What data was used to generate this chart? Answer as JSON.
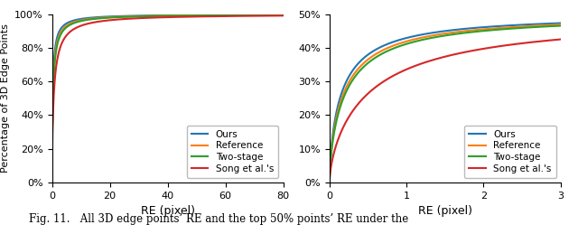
{
  "left_plot": {
    "xlabel": "RE (pixel)",
    "ylabel": "Percentage of 3D Edge Points",
    "xlim": [
      0,
      80
    ],
    "ylim": [
      0,
      1.0
    ],
    "yticks": [
      0.0,
      0.2,
      0.4,
      0.6,
      0.8,
      1.0
    ],
    "ytick_labels": [
      "0%",
      "20%",
      "40%",
      "60%",
      "80%",
      "100%"
    ],
    "xticks": [
      0,
      20,
      40,
      60,
      80
    ]
  },
  "right_plot": {
    "xlabel": "RE (pixel)",
    "xlim": [
      0,
      3
    ],
    "ylim": [
      0,
      0.5
    ],
    "yticks": [
      0.0,
      0.1,
      0.2,
      0.3,
      0.4,
      0.5
    ],
    "ytick_labels": [
      "0%",
      "10%",
      "20%",
      "30%",
      "40%",
      "50%"
    ],
    "xticks": [
      0,
      1,
      2,
      3
    ]
  },
  "legend_labels": [
    "Ours",
    "Reference",
    "Two-stage",
    "Song et al.'s"
  ],
  "legend_colors": [
    "#1f77b4",
    "#ff7f0e",
    "#2ca02c",
    "#d62728"
  ],
  "left_curve_params": {
    "Ours": {
      "c": 0.55,
      "alpha": 0.55
    },
    "Reference": {
      "c": 0.7,
      "alpha": 0.55
    },
    "Two-stage": {
      "c": 0.8,
      "alpha": 0.55
    },
    "Song et al.'s": {
      "c": 1.4,
      "alpha": 0.55
    }
  },
  "right_curve_params": {
    "Ours": {
      "c": 0.28,
      "alpha": 0.62
    },
    "Reference": {
      "c": 0.33,
      "alpha": 0.62
    },
    "Two-stage": {
      "c": 0.37,
      "alpha": 0.62
    },
    "Song et al.'s": {
      "c": 0.9,
      "alpha": 0.62
    }
  },
  "caption": "Fig. 11.   All 3D edge points’ RE and the top 50% points’ RE under the",
  "background_color": "#ffffff"
}
